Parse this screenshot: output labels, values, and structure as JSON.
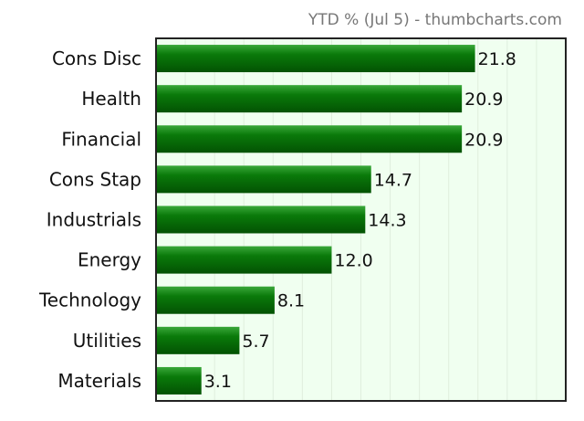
{
  "chart_data": {
    "type": "bar",
    "orientation": "horizontal",
    "title": "YTD % (Jul 5) - thumbcharts.com",
    "categories": [
      "Cons Disc",
      "Health",
      "Financial",
      "Cons Stap",
      "Industrials",
      "Energy",
      "Technology",
      "Utilities",
      "Materials"
    ],
    "values": [
      21.8,
      20.9,
      20.9,
      14.7,
      14.3,
      12.0,
      8.1,
      5.7,
      3.1
    ],
    "value_labels": [
      "21.8",
      "20.9",
      "20.9",
      "14.7",
      "14.3",
      "12.0",
      "8.1",
      "5.7",
      "3.1"
    ],
    "xlim": [
      0,
      28
    ],
    "grid": "vertical",
    "legend": "none",
    "colors": {
      "bar": "#0a7a0a",
      "bar_light": "#3aa83a",
      "bar_dark": "#035203",
      "plot_bg": "#f0fff0",
      "grid": "#dfeedd"
    }
  }
}
